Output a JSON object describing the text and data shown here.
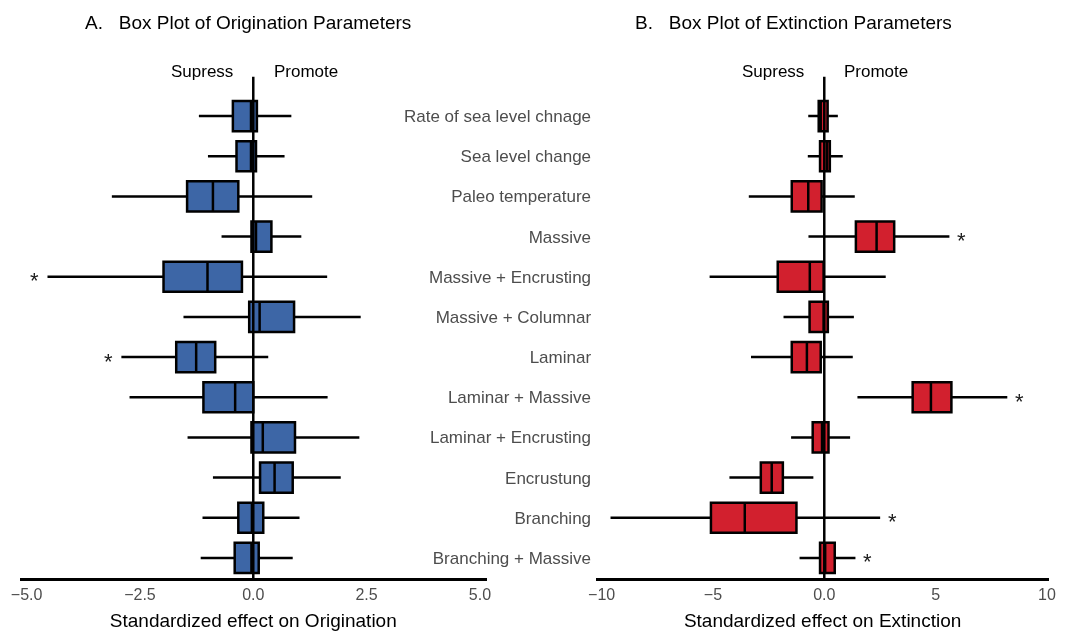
{
  "chart_data": [
    {
      "type": "box",
      "orientation": "horizontal",
      "title": "A.   Box Plot of Origination Parameters",
      "xlabel": "Standardized effect on Origination",
      "color": "#3d66a6",
      "categories": [
        "Rate of sea level chnage",
        "Sea level change",
        "Paleo temperature",
        "Massive",
        "Massive + Encrusting",
        "Massive + Columnar",
        "Laminar",
        "Laminar + Massive",
        "Laminar + Encrusting",
        "Encrustung",
        "Branching",
        "Branching + Massive"
      ],
      "boxes": [
        {
          "low": -1.2,
          "q1": -0.45,
          "median": -0.05,
          "q3": 0.08,
          "high": 0.84
        },
        {
          "low": -1.0,
          "q1": -0.37,
          "median": -0.05,
          "q3": 0.06,
          "high": 0.69
        },
        {
          "low": -3.12,
          "q1": -1.46,
          "median": -0.89,
          "q3": -0.33,
          "high": 1.3
        },
        {
          "low": -0.7,
          "q1": -0.04,
          "median": 0.06,
          "q3": 0.4,
          "high": 1.06
        },
        {
          "low": -4.54,
          "q1": -1.98,
          "median": -1.01,
          "q3": -0.25,
          "high": 1.63
        },
        {
          "low": -1.54,
          "q1": -0.09,
          "median": 0.14,
          "q3": 0.9,
          "high": 2.37
        },
        {
          "low": -2.91,
          "q1": -1.7,
          "median": -1.26,
          "q3": -0.84,
          "high": 0.33
        },
        {
          "low": -2.73,
          "q1": -1.1,
          "median": -0.4,
          "q3": 0.0,
          "high": 1.64
        },
        {
          "low": -1.45,
          "q1": -0.04,
          "median": 0.21,
          "q3": 0.92,
          "high": 2.34
        },
        {
          "low": -0.89,
          "q1": 0.15,
          "median": 0.47,
          "q3": 0.87,
          "high": 1.93
        },
        {
          "low": -1.12,
          "q1": -0.33,
          "median": -0.03,
          "q3": 0.22,
          "high": 1.02
        },
        {
          "low": -1.16,
          "q1": -0.41,
          "median": -0.04,
          "q3": 0.12,
          "high": 0.87
        }
      ],
      "xlim": [
        -5.15,
        5.15
      ],
      "xticks": [
        {
          "value": -5,
          "label": "−5.0"
        },
        {
          "value": -2.5,
          "label": "−2.5"
        },
        {
          "value": 0,
          "label": "0.0"
        },
        {
          "value": 2.5,
          "label": "2.5"
        },
        {
          "value": 5,
          "label": "5.0"
        }
      ],
      "ref_lines": [
        {
          "axis": "x",
          "value": 0,
          "color": "#000000"
        }
      ],
      "annotations": [
        "Supress",
        "Promote",
        {
          "text": "*",
          "x": -4.54,
          "y": "Massive + Encrusting"
        },
        {
          "text": "*",
          "x": -2.91,
          "y": "Laminar"
        }
      ],
      "tick_labels": "x"
    },
    {
      "type": "box",
      "orientation": "horizontal",
      "title": "B.   Box Plot of Extinction Parameters",
      "xlabel": "Standardized effect on Extinction",
      "color": "#d2202e",
      "categories": [
        "Rate of sea level chnage",
        "Sea level change",
        "Paleo temperature",
        "Massive",
        "Massive + Encrusting",
        "Massive + Columnar",
        "Laminar",
        "Laminar + Massive",
        "Laminar + Encrusting",
        "Encrustung",
        "Branching",
        "Branching + Massive"
      ],
      "boxes": [
        {
          "low": -0.72,
          "q1": -0.25,
          "median": -0.16,
          "q3": 0.15,
          "high": 0.61
        },
        {
          "low": -0.74,
          "q1": -0.19,
          "median": 0.12,
          "q3": 0.25,
          "high": 0.83
        },
        {
          "low": -3.39,
          "q1": -1.46,
          "median": -0.72,
          "q3": -0.12,
          "high": 1.37
        },
        {
          "low": -0.71,
          "q1": 1.42,
          "median": 2.35,
          "q3": 3.14,
          "high": 5.62
        },
        {
          "low": -5.15,
          "q1": -2.09,
          "median": -0.65,
          "q3": -0.03,
          "high": 2.76
        },
        {
          "low": -1.83,
          "q1": -0.66,
          "median": -0.03,
          "q3": 0.16,
          "high": 1.33
        },
        {
          "low": -3.29,
          "q1": -1.46,
          "median": -0.78,
          "q3": -0.16,
          "high": 1.28
        },
        {
          "low": 1.49,
          "q1": 3.97,
          "median": 4.79,
          "q3": 5.71,
          "high": 8.22
        },
        {
          "low": -1.49,
          "q1": -0.52,
          "median": -0.1,
          "q3": 0.19,
          "high": 1.16
        },
        {
          "low": -4.26,
          "q1": -2.85,
          "median": -2.36,
          "q3": -1.86,
          "high": -0.49
        },
        {
          "low": -9.6,
          "q1": -5.09,
          "median": -3.57,
          "q3": -1.25,
          "high": 2.51
        },
        {
          "low": -1.11,
          "q1": -0.19,
          "median": 0.04,
          "q3": 0.47,
          "high": 1.4
        }
      ],
      "xlim": [
        -10.25,
        10.1
      ],
      "xticks": [
        {
          "value": -10,
          "label": "−10"
        },
        {
          "value": -5,
          "label": "−5"
        },
        {
          "value": 0,
          "label": "0.0"
        },
        {
          "value": 5,
          "label": "5"
        },
        {
          "value": 10,
          "label": "10"
        }
      ],
      "ref_lines": [
        {
          "axis": "x",
          "value": 0,
          "color": "#000000"
        }
      ],
      "annotations": [
        "Supress",
        "Promote",
        {
          "text": "*",
          "x": 5.62,
          "y": "Massive"
        },
        {
          "text": "*",
          "x": 8.22,
          "y": "Laminar + Massive"
        },
        {
          "text": "*",
          "x": 2.51,
          "y": "Branching"
        },
        {
          "text": "*",
          "x": 1.4,
          "y": "Branching + Massive"
        }
      ]
    }
  ]
}
